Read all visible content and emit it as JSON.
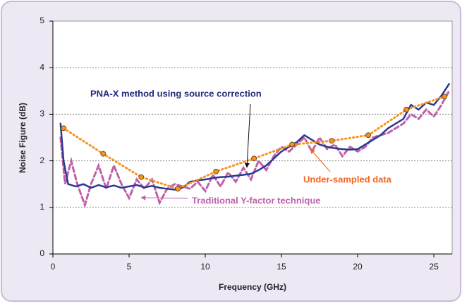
{
  "chart_data": {
    "type": "line",
    "xlabel": "Frequency (GHz)",
    "ylabel": "Noise Figure (dB)",
    "xlim": [
      0,
      26.2
    ],
    "xticks": [
      0,
      5,
      10,
      15,
      20,
      25
    ],
    "ylim": [
      0,
      5
    ],
    "yticks": [
      0,
      1,
      2,
      3,
      4,
      5
    ],
    "grid": true,
    "series": [
      {
        "name": "Traditional Y-factor technique",
        "color": "#c060ac",
        "style": "dashed",
        "x": [
          0.5,
          0.8,
          1.2,
          1.6,
          2.1,
          2.5,
          3,
          3.5,
          4,
          4.5,
          5,
          5.5,
          6,
          6.5,
          7,
          7.5,
          8,
          8.5,
          9,
          9.5,
          10,
          10.5,
          11,
          11.5,
          12,
          12.5,
          13,
          13.5,
          14,
          14.5,
          15,
          15.5,
          16,
          16.5,
          17,
          17.5,
          18,
          18.5,
          19,
          19.5,
          20,
          20.5,
          21,
          22,
          23,
          23.5,
          24,
          24.5,
          25,
          25.5,
          26
        ],
        "values": [
          2.5,
          1.5,
          2.0,
          1.5,
          1.05,
          1.5,
          1.9,
          1.4,
          1.9,
          1.5,
          1.2,
          1.6,
          1.4,
          1.6,
          1.1,
          1.4,
          1.5,
          1.45,
          1.4,
          1.55,
          1.35,
          1.7,
          1.45,
          1.75,
          1.55,
          1.85,
          1.6,
          2.0,
          1.8,
          2.1,
          2.3,
          2.2,
          2.35,
          2.5,
          2.2,
          2.5,
          2.25,
          2.35,
          2.1,
          2.3,
          2.2,
          2.3,
          2.5,
          2.6,
          2.8,
          3.0,
          2.9,
          3.1,
          2.95,
          3.2,
          3.5
        ]
      },
      {
        "name": "PNA-X method using source correction",
        "color": "#2b3990",
        "style": "solid",
        "x": [
          0.5,
          0.7,
          1,
          1.5,
          2,
          2.5,
          3,
          3.5,
          4,
          4.5,
          5,
          5.5,
          6,
          6.5,
          7,
          7.5,
          8,
          8.5,
          9,
          9.5,
          10,
          10.5,
          11,
          11.5,
          12,
          12.5,
          13,
          13.5,
          14,
          14.5,
          15,
          15.5,
          16,
          16.5,
          17,
          17.5,
          18,
          18.5,
          19,
          19.5,
          20,
          20.5,
          21,
          21.5,
          22,
          22.5,
          23,
          23.5,
          24,
          24.5,
          25,
          25.5,
          26
        ],
        "values": [
          2.8,
          2.0,
          1.5,
          1.45,
          1.5,
          1.42,
          1.48,
          1.43,
          1.47,
          1.42,
          1.45,
          1.48,
          1.43,
          1.46,
          1.42,
          1.4,
          1.38,
          1.42,
          1.55,
          1.58,
          1.6,
          1.63,
          1.65,
          1.66,
          1.68,
          1.7,
          1.72,
          1.8,
          1.9,
          2.05,
          2.2,
          2.3,
          2.4,
          2.55,
          2.45,
          2.35,
          2.3,
          2.27,
          2.25,
          2.24,
          2.25,
          2.35,
          2.45,
          2.55,
          2.7,
          2.8,
          2.9,
          3.2,
          3.1,
          3.25,
          3.2,
          3.4,
          3.65
        ]
      },
      {
        "name": "Under-sampled data",
        "color": "#f7941d",
        "style": "dotted",
        "markers": true,
        "x": [
          0.7,
          3.3,
          5.8,
          8.2,
          10.7,
          13.2,
          15.7,
          18.3,
          20.7,
          23.2,
          25.7
        ],
        "values": [
          2.7,
          2.15,
          1.65,
          1.4,
          1.77,
          2.05,
          2.35,
          2.43,
          2.55,
          3.1,
          3.38
        ]
      }
    ]
  }
}
